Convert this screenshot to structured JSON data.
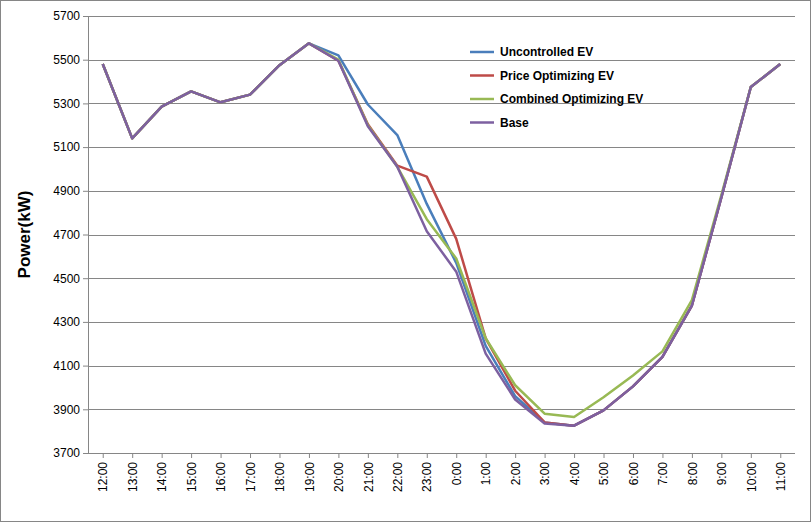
{
  "chart_data": {
    "type": "line",
    "y_label": "Power(kW)",
    "categories": [
      "12:00",
      "13:00",
      "14:00",
      "15:00",
      "16:00",
      "17:00",
      "18:00",
      "19:00",
      "20:00",
      "21:00",
      "22:00",
      "23:00",
      "0:00",
      "1:00",
      "2:00",
      "3:00",
      "4:00",
      "5:00",
      "6:00",
      "7:00",
      "8:00",
      "9:00",
      "10:00",
      "11:00"
    ],
    "series": [
      {
        "name": "Uncontrolled EV",
        "color": "#4a7ebb",
        "values": [
          5480,
          5140,
          5285,
          5355,
          5305,
          5340,
          5475,
          5575,
          5520,
          5295,
          5155,
          4840,
          4570,
          4190,
          3960,
          3840,
          3825,
          3895,
          4005,
          4140,
          4375,
          4870,
          5375,
          5480
        ]
      },
      {
        "name": "Price Optimizing EV",
        "color": "#be4b48",
        "values": [
          5480,
          5140,
          5285,
          5355,
          5305,
          5340,
          5475,
          5575,
          5495,
          5205,
          5015,
          4965,
          4680,
          4225,
          3985,
          3840,
          3825,
          3895,
          4005,
          4140,
          4375,
          4870,
          5375,
          5480
        ]
      },
      {
        "name": "Combined Optimizing EV",
        "color": "#98b954",
        "values": [
          5480,
          5140,
          5285,
          5355,
          5305,
          5340,
          5475,
          5575,
          5500,
          5200,
          5010,
          4770,
          4590,
          4225,
          4010,
          3880,
          3865,
          3955,
          4055,
          4165,
          4400,
          4880,
          5375,
          5480
        ]
      },
      {
        "name": "Base",
        "color": "#7d60a0",
        "values": [
          5480,
          5140,
          5285,
          5355,
          5305,
          5340,
          5475,
          5575,
          5495,
          5195,
          5010,
          4715,
          4530,
          4155,
          3945,
          3835,
          3825,
          3895,
          4005,
          4140,
          4375,
          4870,
          5375,
          5480
        ]
      }
    ],
    "ylim": [
      3700,
      5700
    ],
    "yticks": [
      3700,
      3900,
      4100,
      4300,
      4500,
      4700,
      4900,
      5100,
      5300,
      5500,
      5700
    ],
    "grid": true,
    "legend": "top-right"
  }
}
